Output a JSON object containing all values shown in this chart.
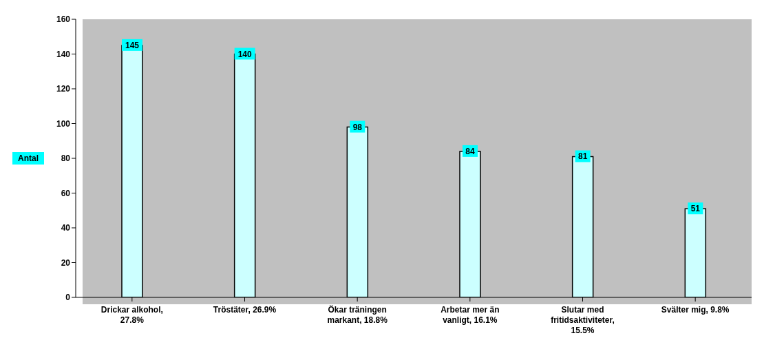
{
  "chart_data": {
    "type": "bar",
    "ylabel": "Antal",
    "categories": [
      "Drickar alkohol, 27.8%",
      "Tröstäter, 26.9%",
      "Ökar träningen markant, 18.8%",
      "Arbetar mer än vanligt, 16.1%",
      "Slutar med fritidsaktiviteter, 15.5%",
      "Svälter mig, 9.8%"
    ],
    "values": [
      145,
      140,
      98,
      84,
      81,
      51
    ],
    "color": "#ccffff",
    "ylim": [
      0,
      160
    ],
    "yticks": [
      0,
      20,
      40,
      60,
      80,
      100,
      120,
      140,
      160
    ],
    "grid": false,
    "data_labels": true
  }
}
